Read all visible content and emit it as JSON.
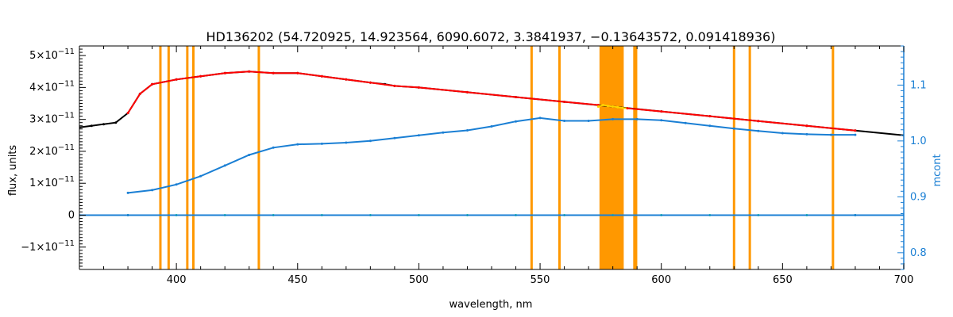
{
  "chart_data": {
    "type": "line",
    "title": "HD136202    (54.720925, 14.923564, 6090.6072, 3.3841937, −0.13643572, 0.091418936)",
    "xlabel": "wavelength, nm",
    "ylabel": "flux, units",
    "ylabel_right": "mcont",
    "xlim": [
      360,
      700
    ],
    "ylim": [
      -1.7e-11,
      5.3e-11
    ],
    "ylim_right": [
      0.77,
      1.17
    ],
    "x_ticks": [
      400,
      450,
      500,
      550,
      600,
      650,
      700
    ],
    "y_ticks": [
      {
        "value": -1e-11,
        "mant": "−1×10",
        "exp": "−11"
      },
      {
        "value": 0,
        "mant": "0",
        "exp": ""
      },
      {
        "value": 1e-11,
        "mant": "1×10",
        "exp": "−11"
      },
      {
        "value": 2e-11,
        "mant": "2×10",
        "exp": "−11"
      },
      {
        "value": 3e-11,
        "mant": "3×10",
        "exp": "−11"
      },
      {
        "value": 4e-11,
        "mant": "4×10",
        "exp": "−11"
      },
      {
        "value": 5e-11,
        "mant": "5×10",
        "exp": "−11"
      }
    ],
    "y_right_ticks": [
      0.8,
      0.9,
      1.0,
      1.1
    ],
    "y_right_tick_labels": [
      "0.8",
      "0.9",
      "1.0",
      "1.1"
    ],
    "masked_lines_nm": [
      393.4,
      396.8,
      404.5,
      407.0,
      434.0,
      546.5,
      558.0,
      588.9,
      589.6,
      630.0,
      636.5,
      670.8
    ],
    "masked_band_nm": [
      574.5,
      584.5
    ],
    "series": [
      {
        "color": "#000000",
        "x": [
          360,
          365,
          370,
          375,
          380,
          385,
          390,
          400,
          410,
          420,
          430,
          440,
          450,
          460,
          470,
          480,
          486,
          490,
          500,
          520,
          540,
          560,
          580,
          600,
          620,
          640,
          660,
          680,
          700
        ],
        "values": [
          2.75e-11,
          2.8e-11,
          2.85e-11,
          2.9e-11,
          3.2e-11,
          3.8e-11,
          4.1e-11,
          4.25e-11,
          4.35e-11,
          4.45e-11,
          4.5e-11,
          4.45e-11,
          4.45e-11,
          4.35e-11,
          4.25e-11,
          4.15e-11,
          4.1e-11,
          4.05e-11,
          4e-11,
          3.85e-11,
          3.7e-11,
          3.55e-11,
          3.4e-11,
          3.25e-11,
          3.1e-11,
          2.95e-11,
          2.8e-11,
          2.65e-11,
          2.5e-11
        ]
      },
      {
        "color": "#ff0000",
        "x": [
          380,
          385,
          390,
          400,
          410,
          420,
          430,
          440,
          450,
          460,
          470,
          480,
          490,
          500,
          520,
          540,
          560,
          574
        ],
        "values": [
          3.2e-11,
          3.8e-11,
          4.1e-11,
          4.25e-11,
          4.35e-11,
          4.45e-11,
          4.5e-11,
          4.45e-11,
          4.45e-11,
          4.35e-11,
          4.25e-11,
          4.15e-11,
          4.05e-11,
          4e-11,
          3.85e-11,
          3.7e-11,
          3.55e-11,
          3.45e-11
        ]
      },
      {
        "color": "#ffd400",
        "x": [
          574,
          576,
          578,
          580,
          582,
          584,
          586
        ],
        "values": [
          3.4e-11,
          3.45e-11,
          3.42e-11,
          3.4e-11,
          3.38e-11,
          3.36e-11,
          3.35e-11
        ]
      },
      {
        "color": "#ff0000",
        "x": [
          586,
          600,
          620,
          640,
          660,
          680
        ],
        "values": [
          3.35e-11,
          3.25e-11,
          3.1e-11,
          2.95e-11,
          2.8e-11,
          2.65e-11
        ]
      },
      {
        "color": "#00ee77",
        "x": [
          380,
          400,
          420,
          440,
          460,
          480,
          500,
          520,
          540,
          560,
          580,
          600,
          620,
          640,
          660,
          680
        ],
        "values": [
          0,
          0,
          0,
          0,
          0,
          0,
          0,
          0,
          0,
          0,
          0,
          0,
          0,
          0,
          0,
          0
        ]
      },
      {
        "color": "#1a7fd4",
        "axis": "right",
        "x": [
          380,
          390,
          400,
          410,
          420,
          430,
          440,
          450,
          460,
          470,
          480,
          490,
          500,
          510,
          520,
          530,
          540,
          550,
          560,
          570,
          580,
          590,
          600,
          610,
          620,
          630,
          640,
          650,
          660,
          670,
          680
        ],
        "values": [
          0.907,
          0.912,
          0.922,
          0.937,
          0.956,
          0.975,
          0.988,
          0.994,
          0.995,
          0.997,
          1.0,
          1.005,
          1.01,
          1.015,
          1.019,
          1.026,
          1.035,
          1.041,
          1.036,
          1.036,
          1.039,
          1.039,
          1.037,
          1.032,
          1.027,
          1.022,
          1.018,
          1.014,
          1.012,
          1.011,
          1.011
        ]
      },
      {
        "color": "#1a7fd4",
        "x": [
          360,
          380,
          680,
          700
        ],
        "values": [
          0,
          0,
          0,
          0
        ]
      }
    ]
  }
}
